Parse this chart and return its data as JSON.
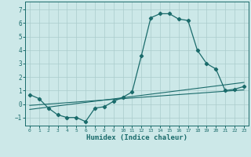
{
  "xlabel": "Humidex (Indice chaleur)",
  "bg_color": "#cce8e8",
  "line_color": "#1a6b6b",
  "grid_color": "#aacccc",
  "xlim": [
    -0.5,
    23.5
  ],
  "ylim": [
    -1.6,
    7.6
  ],
  "xticks": [
    0,
    1,
    2,
    3,
    4,
    5,
    6,
    7,
    8,
    9,
    10,
    11,
    12,
    13,
    14,
    15,
    16,
    17,
    18,
    19,
    20,
    21,
    22,
    23
  ],
  "yticks": [
    -1,
    0,
    1,
    2,
    3,
    4,
    5,
    6,
    7
  ],
  "line1_x": [
    0,
    1,
    2,
    3,
    4,
    5,
    6,
    7,
    8,
    9,
    10,
    11,
    12,
    13,
    14,
    15,
    16,
    17,
    18,
    19,
    20,
    21,
    22,
    23
  ],
  "line1_y": [
    0.7,
    0.4,
    -0.3,
    -0.8,
    -1.0,
    -1.0,
    -1.3,
    -0.3,
    -0.2,
    0.2,
    0.5,
    0.9,
    3.6,
    6.4,
    6.7,
    6.7,
    6.3,
    6.2,
    4.0,
    3.0,
    2.6,
    1.0,
    1.1,
    1.3
  ],
  "line2_x": [
    0,
    23
  ],
  "line2_y": [
    -0.1,
    1.05
  ],
  "line3_x": [
    0,
    23
  ],
  "line3_y": [
    -0.4,
    1.6
  ]
}
